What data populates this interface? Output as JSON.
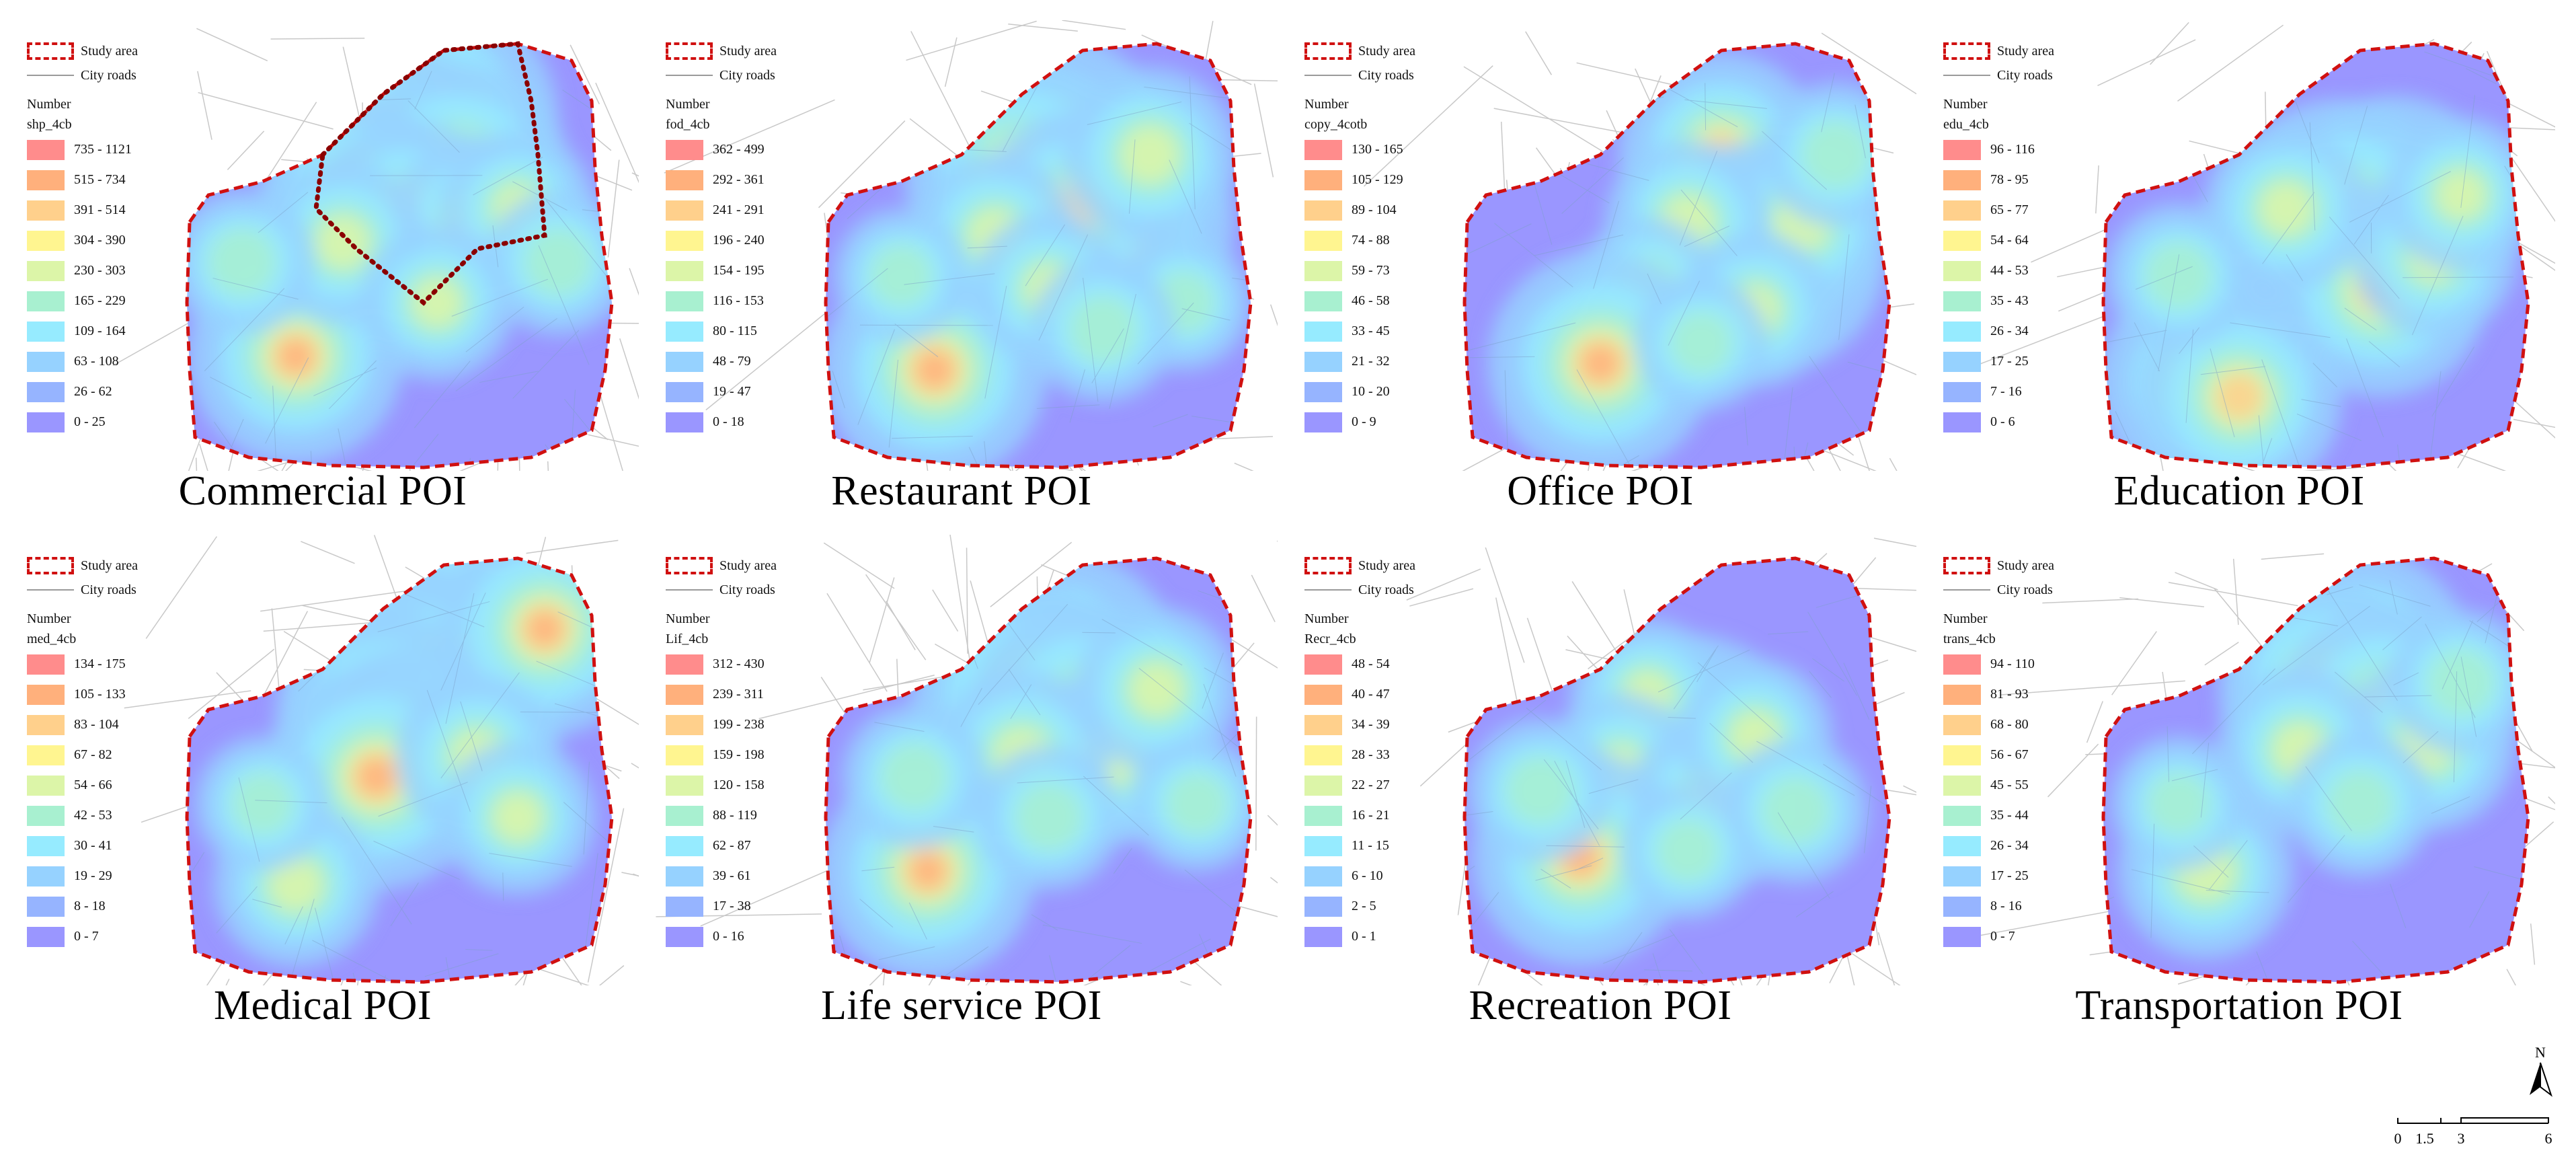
{
  "legend_common": {
    "study_area": "Study area",
    "city_roads": "City roads",
    "number_label": "Number"
  },
  "class_colors": [
    "#ff8c8c",
    "#ffb07c",
    "#ffd08c",
    "#fff590",
    "#dcf5a8",
    "#a8f0d0",
    "#96ebff",
    "#96d2ff",
    "#96b4ff",
    "#9a96ff"
  ],
  "panels": [
    {
      "title": "Commercial POI",
      "field": "shp_4cb",
      "classes": [
        "735 - 1121",
        "515 - 734",
        "391 - 514",
        "304 - 390",
        "230 - 303",
        "165 - 229",
        "109 - 164",
        "63 - 108",
        "26 - 62",
        "0 - 25"
      ]
    },
    {
      "title": "Restaurant POI",
      "field": "fod_4cb",
      "classes": [
        "362 - 499",
        "292 - 361",
        "241 - 291",
        "196 - 240",
        "154 - 195",
        "116 - 153",
        "80 - 115",
        "48 - 79",
        "19 - 47",
        "0 - 18"
      ]
    },
    {
      "title": "Office POI",
      "field": "copy_4cotb",
      "classes": [
        "130 - 165",
        "105 - 129",
        "89 - 104",
        "74 - 88",
        "59 - 73",
        "46 - 58",
        "33 - 45",
        "21 - 32",
        "10 - 20",
        "0 - 9"
      ]
    },
    {
      "title": "Education POI",
      "field": "edu_4cb",
      "classes": [
        "96 - 116",
        "78 - 95",
        "65 - 77",
        "54 - 64",
        "44 - 53",
        "35 - 43",
        "26 - 34",
        "17 - 25",
        "7 - 16",
        "0 - 6"
      ]
    },
    {
      "title": "Medical POI",
      "field": "med_4cb",
      "classes": [
        "134 - 175",
        "105 - 133",
        "83 - 104",
        "67 - 82",
        "54 - 66",
        "42 - 53",
        "30 - 41",
        "19 - 29",
        "8 - 18",
        "0 - 7"
      ]
    },
    {
      "title": "Life service POI",
      "field": "Lif_4cb",
      "classes": [
        "312 - 430",
        "239 - 311",
        "199 - 238",
        "159 - 198",
        "120 - 158",
        "88 - 119",
        "62 - 87",
        "39 - 61",
        "17 - 38",
        "0 - 16"
      ]
    },
    {
      "title": "Recreation POI",
      "field": "Recr_4cb",
      "classes": [
        "48 - 54",
        "40 - 47",
        "34 - 39",
        "28 - 33",
        "22 - 27",
        "16 - 21",
        "11 - 15",
        "6 - 10",
        "2 - 5",
        "0 - 1"
      ]
    },
    {
      "title": "Transportation POI",
      "field": "trans_4cb",
      "classes": [
        "94 - 110",
        "81 - 93",
        "68 - 80",
        "56 - 67",
        "45 - 55",
        "35 - 44",
        "26 - 34",
        "17 - 25",
        "8 - 16",
        "0 - 7"
      ]
    }
  ],
  "scale_bar": {
    "ticks": [
      "0",
      "1.5",
      "3",
      "6"
    ]
  },
  "north_arrow": {
    "label": "N"
  }
}
